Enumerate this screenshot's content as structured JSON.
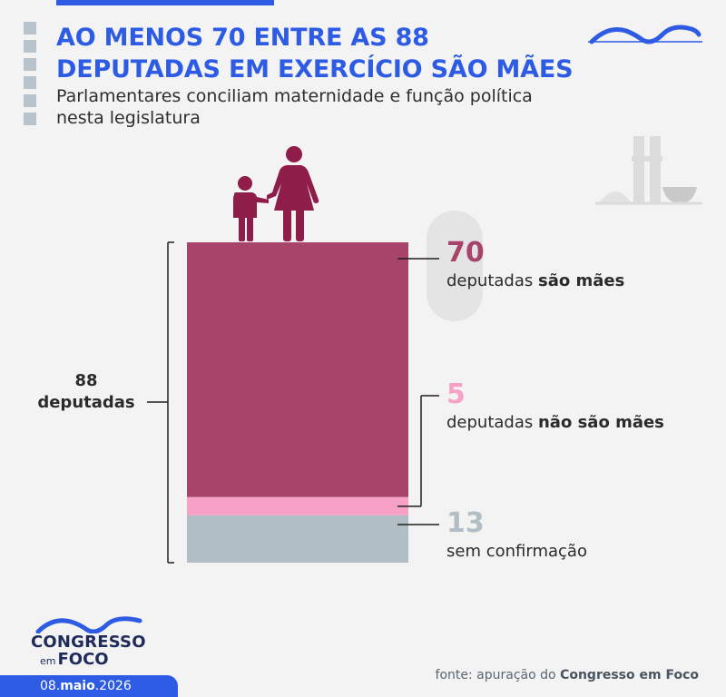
{
  "header": {
    "title_line1": "AO MENOS 70 ENTRE AS 88",
    "title_line2": "DEPUTADAS EM EXERCÍCIO SÃO MÃES",
    "subtitle_line1": "Parlamentares conciliam maternidade e função política",
    "subtitle_line2": "nesta legislatura"
  },
  "total_label": {
    "number": "88",
    "word": "deputadas"
  },
  "annotations": {
    "maes": {
      "number": "70",
      "text_plain": "deputadas ",
      "text_bold": "são mães"
    },
    "nao_maes": {
      "number": "5",
      "text_plain": "deputadas ",
      "text_bold": "não são mães"
    },
    "sem_confirmacao": {
      "number": "13",
      "text_plain": "sem confirmação",
      "text_bold": ""
    }
  },
  "chart_data": {
    "type": "bar",
    "stacked": true,
    "total": 88,
    "categories": [
      "deputadas"
    ],
    "series": [
      {
        "name": "são mães",
        "values": [
          70
        ],
        "color": "#a84469"
      },
      {
        "name": "não são mães",
        "values": [
          5
        ],
        "color": "#f7a1c7"
      },
      {
        "name": "sem confirmação",
        "values": [
          13
        ],
        "color": "#b2bec5"
      }
    ]
  },
  "colors": {
    "accent": "#2d5be3",
    "maes": "#a84469",
    "nao_maes": "#f7a1c7",
    "sem_confirmacao": "#b2bec5",
    "figure": "#8e1d4a"
  },
  "icons": {
    "top_right": "congresso-wave-logo-icon",
    "building": "national-congress-building-icon",
    "figures": "mother-and-child-icon"
  },
  "footer": {
    "brand_line1": "CONGRESSO",
    "brand_em": "em",
    "brand_foco": "FOCO",
    "date_day": "08.",
    "date_month": "maio",
    "date_year": ".2026",
    "source_prefix": "fonte: apuração do ",
    "source_bold": "Congresso em Foco"
  }
}
